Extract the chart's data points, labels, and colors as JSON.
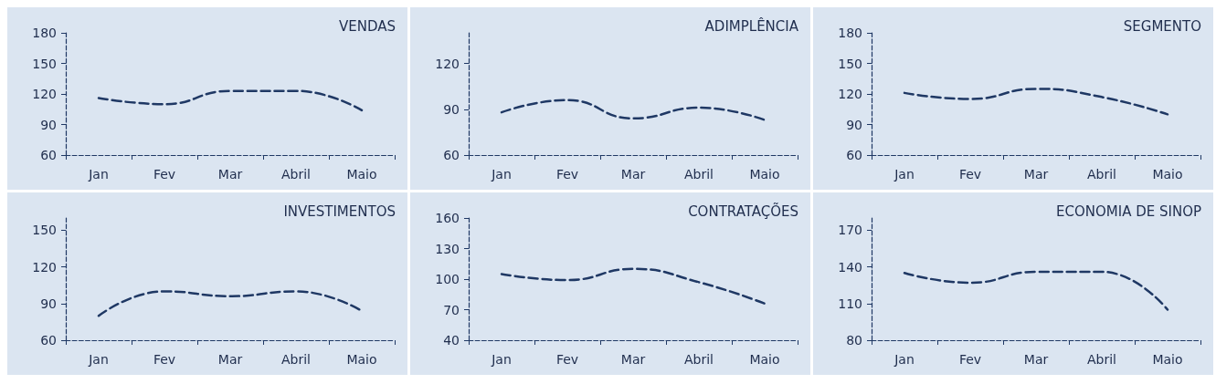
{
  "chart_data": [
    {
      "type": "line",
      "title": "VENDAS",
      "categories": [
        "Jan",
        "Fev",
        "Mar",
        "Abril",
        "Maio"
      ],
      "values": [
        116,
        110,
        123,
        123,
        104
      ],
      "color": "#1f3864",
      "ylim": [
        60,
        180
      ],
      "yticks": [
        60,
        90,
        120,
        150,
        180
      ],
      "grid": false,
      "marker": "none",
      "line_style": "dashed"
    },
    {
      "type": "line",
      "title": "ADIMPLÊNCIA",
      "categories": [
        "Jan",
        "Fev",
        "Mar",
        "Abril",
        "Maio"
      ],
      "values": [
        88,
        96,
        84,
        91,
        83
      ],
      "color": "#1f3864",
      "ylim": [
        60,
        140
      ],
      "yticks": [
        60,
        90,
        120
      ],
      "grid": false,
      "marker": "none",
      "line_style": "dashed"
    },
    {
      "type": "line",
      "title": "SEGMENTO",
      "categories": [
        "Jan",
        "Fev",
        "Mar",
        "Abril",
        "Maio"
      ],
      "values": [
        121,
        115,
        125,
        117,
        100
      ],
      "color": "#1f3864",
      "ylim": [
        60,
        180
      ],
      "yticks": [
        60,
        90,
        120,
        150,
        180
      ],
      "grid": false,
      "marker": "none",
      "line_style": "dashed"
    },
    {
      "type": "line",
      "title": "INVESTIMENTOS",
      "categories": [
        "Jan",
        "Fev",
        "Mar",
        "Abril",
        "Maio"
      ],
      "values": [
        80,
        100,
        96,
        100,
        84
      ],
      "color": "#1f3864",
      "ylim": [
        60,
        160
      ],
      "yticks": [
        60,
        90,
        120,
        150
      ],
      "grid": false,
      "marker": "none",
      "line_style": "dashed"
    },
    {
      "type": "line",
      "title": "CONTRATAÇÕES",
      "categories": [
        "Jan",
        "Fev",
        "Mar",
        "Abril",
        "Maio"
      ],
      "values": [
        105,
        99,
        110,
        97,
        76
      ],
      "color": "#1f3864",
      "ylim": [
        40,
        160
      ],
      "yticks": [
        40,
        70,
        100,
        130,
        160
      ],
      "grid": false,
      "marker": "none",
      "line_style": "dashed"
    },
    {
      "type": "line",
      "title": "ECONOMIA DE SINOP",
      "categories": [
        "Jan",
        "Fev",
        "Mar",
        "Abril",
        "Maio"
      ],
      "values": [
        135,
        127,
        136,
        136,
        105
      ],
      "color": "#1f3864",
      "ylim": [
        80,
        180
      ],
      "yticks": [
        80,
        110,
        140,
        170
      ],
      "grid": false,
      "marker": "none",
      "line_style": "dashed"
    }
  ]
}
